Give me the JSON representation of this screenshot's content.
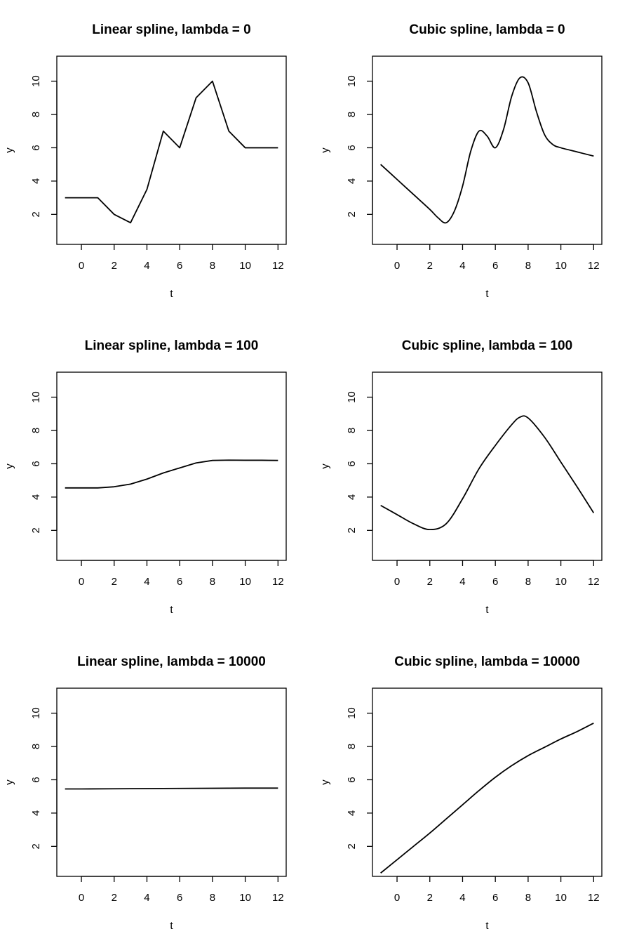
{
  "chart_data": [
    {
      "type": "line",
      "title": "Linear spline, lambda = 0",
      "xlabel": "t",
      "ylabel": "y",
      "xlim": [
        -1.5,
        12.5
      ],
      "ylim": [
        0.2,
        11.5
      ],
      "xticks": [
        0,
        2,
        4,
        6,
        8,
        10,
        12
      ],
      "yticks": [
        2,
        4,
        6,
        8,
        10
      ],
      "grid": false,
      "x": [
        -1,
        0,
        1,
        2,
        3,
        4,
        5,
        6,
        7,
        8,
        9,
        10,
        11,
        12
      ],
      "y": [
        3,
        3,
        3,
        2,
        1.5,
        3.5,
        7,
        6,
        9,
        10,
        7,
        6,
        6,
        6
      ]
    },
    {
      "type": "line",
      "title": "Cubic spline, lambda = 0",
      "xlabel": "t",
      "ylabel": "y",
      "xlim": [
        -1.5,
        12.5
      ],
      "ylim": [
        0.2,
        11.5
      ],
      "xticks": [
        0,
        2,
        4,
        6,
        8,
        10,
        12
      ],
      "yticks": [
        2,
        4,
        6,
        8,
        10
      ],
      "grid": false,
      "x": [
        -1,
        0,
        1,
        2,
        2.5,
        3,
        3.5,
        4,
        4.5,
        5,
        5.5,
        6,
        6.5,
        7,
        7.5,
        8,
        8.5,
        9,
        9.5,
        10,
        11,
        12
      ],
      "y": [
        5,
        4.1,
        3.2,
        2.3,
        1.8,
        1.5,
        2.2,
        3.7,
        5.8,
        7.0,
        6.7,
        6.0,
        7.1,
        9.1,
        10.2,
        9.9,
        8.2,
        6.8,
        6.2,
        6.0,
        5.75,
        5.5
      ]
    },
    {
      "type": "line",
      "title": "Linear spline, lambda = 100",
      "xlabel": "t",
      "ylabel": "y",
      "xlim": [
        -1.5,
        12.5
      ],
      "ylim": [
        0.2,
        11.5
      ],
      "xticks": [
        0,
        2,
        4,
        6,
        8,
        10,
        12
      ],
      "yticks": [
        2,
        4,
        6,
        8,
        10
      ],
      "grid": false,
      "x": [
        -1,
        0,
        1,
        2,
        3,
        4,
        5,
        6,
        7,
        8,
        9,
        10,
        11,
        12
      ],
      "y": [
        4.55,
        4.55,
        4.55,
        4.62,
        4.78,
        5.08,
        5.45,
        5.75,
        6.05,
        6.2,
        6.22,
        6.21,
        6.21,
        6.2
      ]
    },
    {
      "type": "line",
      "title": "Cubic spline, lambda = 100",
      "xlabel": "t",
      "ylabel": "y",
      "xlim": [
        -1.5,
        12.5
      ],
      "ylim": [
        0.2,
        11.5
      ],
      "xticks": [
        0,
        2,
        4,
        6,
        8,
        10,
        12
      ],
      "yticks": [
        2,
        4,
        6,
        8,
        10
      ],
      "grid": false,
      "x": [
        -1,
        0,
        1,
        2,
        3,
        4,
        5,
        6,
        7,
        7.5,
        8,
        9,
        10,
        11,
        12
      ],
      "y": [
        3.5,
        2.95,
        2.4,
        2.05,
        2.4,
        3.9,
        5.7,
        7.1,
        8.35,
        8.8,
        8.75,
        7.6,
        6.1,
        4.6,
        3.05
      ]
    },
    {
      "type": "line",
      "title": "Linear spline, lambda = 10000",
      "xlabel": "t",
      "ylabel": "y",
      "xlim": [
        -1.5,
        12.5
      ],
      "ylim": [
        0.2,
        11.5
      ],
      "xticks": [
        0,
        2,
        4,
        6,
        8,
        10,
        12
      ],
      "yticks": [
        2,
        4,
        6,
        8,
        10
      ],
      "grid": false,
      "x": [
        -1,
        0,
        2,
        4,
        6,
        8,
        10,
        12
      ],
      "y": [
        5.45,
        5.45,
        5.46,
        5.47,
        5.48,
        5.49,
        5.5,
        5.5
      ]
    },
    {
      "type": "line",
      "title": "Cubic spline, lambda = 10000",
      "xlabel": "t",
      "ylabel": "y",
      "xlim": [
        -1.5,
        12.5
      ],
      "ylim": [
        0.2,
        11.5
      ],
      "xticks": [
        0,
        2,
        4,
        6,
        8,
        10,
        12
      ],
      "yticks": [
        2,
        4,
        6,
        8,
        10
      ],
      "grid": false,
      "x": [
        -1,
        0,
        1,
        2,
        3,
        4,
        5,
        6,
        7,
        8,
        9,
        10,
        11,
        12
      ],
      "y": [
        0.4,
        1.2,
        2.0,
        2.8,
        3.65,
        4.5,
        5.35,
        6.15,
        6.85,
        7.45,
        7.95,
        8.45,
        8.9,
        9.4
      ]
    }
  ]
}
